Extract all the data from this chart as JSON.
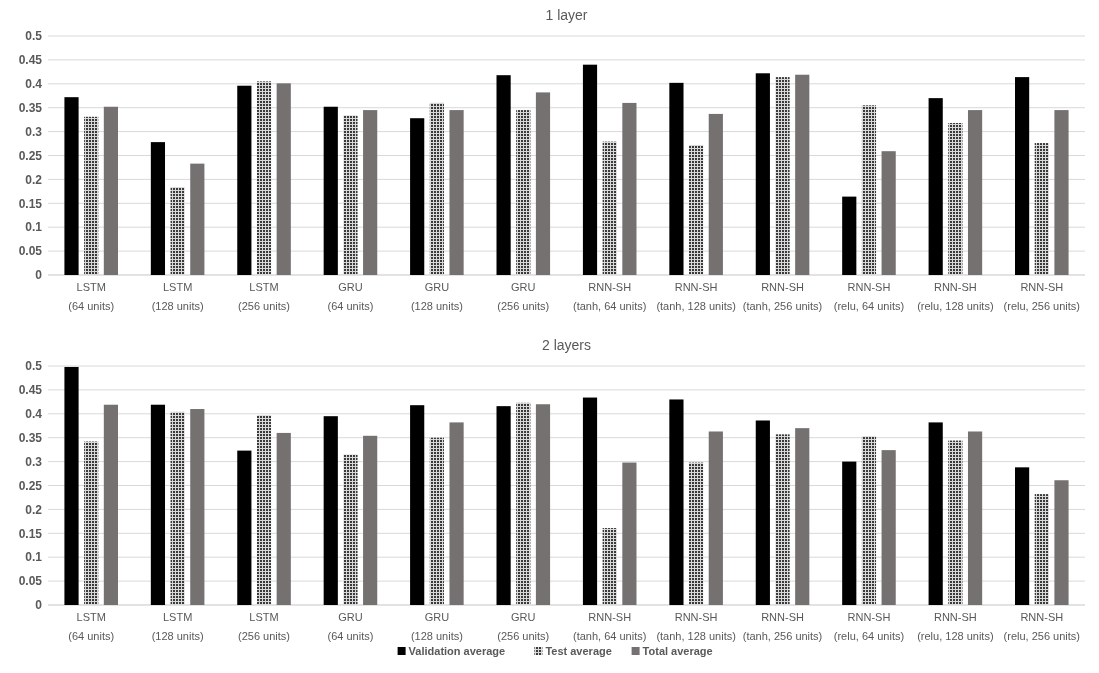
{
  "chart_data": [
    {
      "type": "bar",
      "title": "1 layer",
      "categories": [
        "LSTM (64 units)",
        "LSTM (128 units)",
        "LSTM (256 units)",
        "GRU (64 units)",
        "GRU (128 units)",
        "GRU (256 units)",
        "RNN-SH (tanh, 64 units)",
        "RNN-SH (tanh, 128 units)",
        "RNN-SH (tanh, 256 units)",
        "RNN-SH (relu, 64 units)",
        "RNN-SH (relu, 128 units)",
        "RNN-SH (relu, 256 units)"
      ],
      "series": [
        {
          "color": "#000000",
          "values": [
            0.372,
            0.278,
            0.396,
            0.352,
            0.328,
            0.418,
            0.44,
            0.402,
            0.422,
            0.164,
            0.37,
            0.414
          ]
        },
        {
          "color": "#3a3a3a",
          "values": [
            0.331,
            0.184,
            0.405,
            0.334,
            0.36,
            0.345,
            0.279,
            0.272,
            0.414,
            0.355,
            0.318,
            0.276
          ]
        },
        {
          "color": "#767171",
          "values": [
            0.352,
            0.233,
            0.401,
            0.345,
            0.345,
            0.382,
            0.36,
            0.337,
            0.419,
            0.259,
            0.345,
            0.345
          ]
        }
      ],
      "ylim": [
        0,
        0.5
      ],
      "yticks": [
        0,
        0.05,
        0.1,
        0.15,
        0.2,
        0.25,
        0.3,
        0.35,
        0.4,
        0.45,
        0.5
      ],
      "grid": "y",
      "legend": false
    },
    {
      "type": "bar",
      "title": "2 layers",
      "categories": [
        "LSTM (64 units)",
        "LSTM (128 units)",
        "LSTM (256 units)",
        "GRU (64 units)",
        "GRU (128 units)",
        "GRU (256 units)",
        "RNN-SH (tanh, 64 units)",
        "RNN-SH (tanh, 128 units)",
        "RNN-SH (tanh, 256 units)",
        "RNN-SH (relu, 64 units)",
        "RNN-SH (relu, 128 units)",
        "RNN-SH (relu, 256 units)"
      ],
      "series": [
        {
          "name": "Validation average",
          "color": "#000000",
          "values": [
            0.498,
            0.419,
            0.323,
            0.395,
            0.418,
            0.416,
            0.434,
            0.43,
            0.386,
            0.3,
            0.382,
            0.288
          ]
        },
        {
          "name": "Test average",
          "color": "#3a3a3a",
          "values": [
            0.342,
            0.404,
            0.397,
            0.315,
            0.35,
            0.423,
            0.161,
            0.298,
            0.357,
            0.353,
            0.344,
            0.232
          ]
        },
        {
          "name": "Total average",
          "color": "#767171",
          "values": [
            0.419,
            0.41,
            0.36,
            0.354,
            0.382,
            0.42,
            0.298,
            0.363,
            0.37,
            0.324,
            0.363,
            0.261
          ]
        }
      ],
      "ylim": [
        0,
        0.5
      ],
      "yticks": [
        0,
        0.05,
        0.1,
        0.15,
        0.2,
        0.25,
        0.3,
        0.35,
        0.4,
        0.45,
        0.5
      ],
      "grid": "y",
      "legend": "bottom"
    }
  ]
}
